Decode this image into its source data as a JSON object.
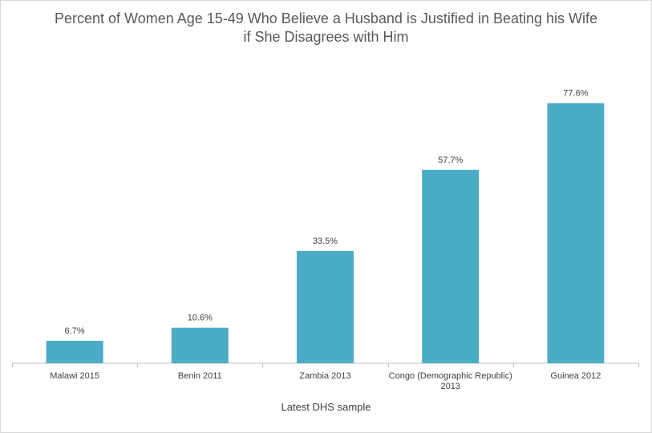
{
  "chart_data": {
    "type": "bar",
    "title_line1": "Percent of Women Age 15-49 Who Believe a Husband is Justified in Beating his Wife",
    "title_line2": "if She Disagrees with Him",
    "xlabel": "Latest DHS sample",
    "ylabel": "",
    "categories": [
      [
        "Malawi 2015"
      ],
      [
        "Benin 2011"
      ],
      [
        "Zambia 2013"
      ],
      [
        "Congo (Demographic Republic)",
        "2013"
      ],
      [
        "Guinea 2012"
      ]
    ],
    "values": [
      6.7,
      10.6,
      33.5,
      57.7,
      77.6
    ],
    "data_labels": [
      "6.7%",
      "10.6%",
      "33.5%",
      "57.7%",
      "77.6%"
    ],
    "ylim": [
      0,
      80
    ],
    "bar_color": "#4BACC6",
    "grid": false,
    "legend": "none"
  }
}
